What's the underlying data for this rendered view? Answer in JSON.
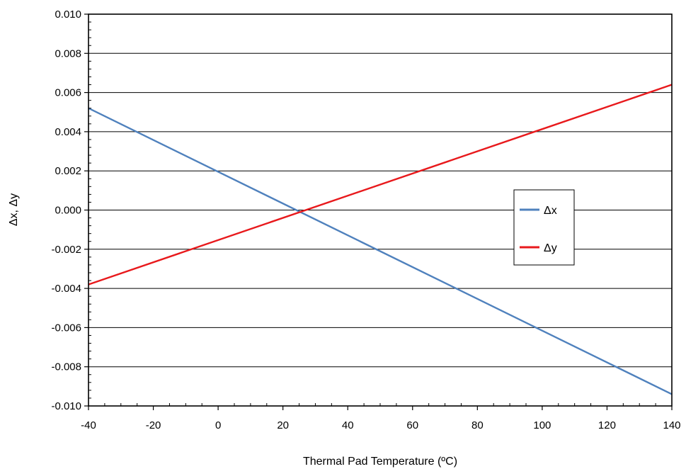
{
  "chart_data": {
    "type": "line",
    "title": "",
    "xlabel": "Thermal Pad Temperature (ºC)",
    "ylabel": "Δx, Δy",
    "xlim": [
      -40,
      140
    ],
    "ylim": [
      -0.01,
      0.01
    ],
    "x_ticks": [
      "-40",
      "-20",
      "0",
      "20",
      "40",
      "60",
      "80",
      "100",
      "120",
      "140"
    ],
    "y_ticks": [
      "0.010",
      "0.008",
      "0.006",
      "0.004",
      "0.002",
      "0.000",
      "-0.002",
      "-0.004",
      "-0.006",
      "-0.008",
      "-0.010"
    ],
    "grid": "horizontal",
    "legend_position": "center-right",
    "series": [
      {
        "name": "Δx",
        "color": "#4F81BD",
        "x": [
          -40,
          140
        ],
        "y": [
          0.0052,
          -0.0094
        ]
      },
      {
        "name": "Δy",
        "color": "#E8191C",
        "x": [
          -40,
          140
        ],
        "y": [
          -0.0038,
          0.0064
        ]
      }
    ]
  }
}
